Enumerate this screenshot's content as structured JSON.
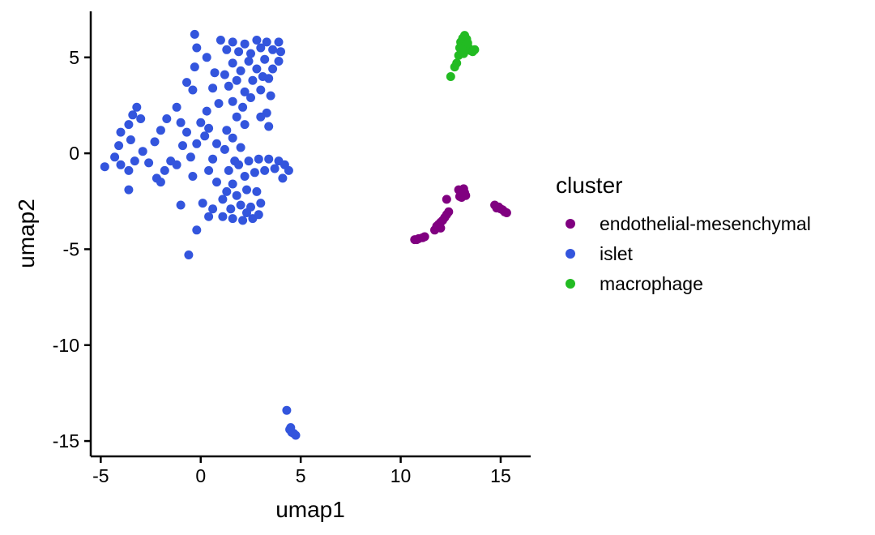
{
  "chart_data": {
    "type": "scatter",
    "title": "",
    "xlabel": "umap1",
    "ylabel": "umap2",
    "xlim": [
      -5.5,
      16.5
    ],
    "ylim": [
      -15.8,
      7.4
    ],
    "x_ticks": [
      -5,
      0,
      5,
      10,
      15
    ],
    "y_ticks": [
      5,
      0,
      -5,
      -10,
      -15
    ],
    "x_tick_labels": [
      "-5",
      "0",
      "5",
      "10",
      "15"
    ],
    "y_tick_labels": [
      "5",
      "0",
      "-5",
      "-10",
      "-15"
    ],
    "grid": false,
    "legend": {
      "title": "cluster",
      "placement": "right"
    },
    "series": [
      {
        "name": "endothelial-mesenchymal",
        "color": "#800080",
        "points": [
          [
            10.7,
            -4.5
          ],
          [
            10.9,
            -4.45
          ],
          [
            11.1,
            -4.4
          ],
          [
            11.2,
            -4.35
          ],
          [
            10.8,
            -4.5
          ],
          [
            11.7,
            -4.0
          ],
          [
            11.8,
            -3.8
          ],
          [
            11.9,
            -3.7
          ],
          [
            12.0,
            -3.6
          ],
          [
            12.1,
            -3.5
          ],
          [
            12.2,
            -3.35
          ],
          [
            12.3,
            -3.2
          ],
          [
            12.4,
            -3.05
          ],
          [
            12.3,
            -2.4
          ],
          [
            12.0,
            -3.9
          ],
          [
            12.9,
            -1.9
          ],
          [
            13.0,
            -2.0
          ],
          [
            13.1,
            -2.15
          ],
          [
            13.2,
            -2.05
          ],
          [
            13.05,
            -2.3
          ],
          [
            12.95,
            -2.25
          ],
          [
            13.15,
            -1.85
          ],
          [
            13.25,
            -2.2
          ],
          [
            14.7,
            -2.7
          ],
          [
            14.9,
            -2.8
          ],
          [
            15.0,
            -2.9
          ],
          [
            15.1,
            -2.95
          ],
          [
            15.2,
            -3.05
          ],
          [
            15.3,
            -3.1
          ],
          [
            14.8,
            -2.85
          ]
        ]
      },
      {
        "name": "islet",
        "color": "#3355dd",
        "points": [
          [
            -4.8,
            -0.7
          ],
          [
            -4.3,
            -0.2
          ],
          [
            -4.1,
            0.4
          ],
          [
            -4.0,
            1.1
          ],
          [
            -3.6,
            1.5
          ],
          [
            -3.4,
            2.0
          ],
          [
            -3.2,
            2.4
          ],
          [
            -3.0,
            1.8
          ],
          [
            -3.5,
            0.7
          ],
          [
            -3.3,
            -0.4
          ],
          [
            -3.6,
            -0.9
          ],
          [
            -4.0,
            -0.6
          ],
          [
            -3.6,
            -1.9
          ],
          [
            -2.9,
            0.1
          ],
          [
            -2.6,
            -0.5
          ],
          [
            -2.2,
            -1.3
          ],
          [
            -2.0,
            -1.5
          ],
          [
            -1.8,
            -0.9
          ],
          [
            -1.5,
            -0.4
          ],
          [
            -2.3,
            0.6
          ],
          [
            -2.0,
            1.2
          ],
          [
            -1.7,
            1.8
          ],
          [
            -1.2,
            2.4
          ],
          [
            -1.0,
            1.6
          ],
          [
            -0.7,
            1.1
          ],
          [
            -0.9,
            0.4
          ],
          [
            -0.5,
            -0.2
          ],
          [
            -0.2,
            0.5
          ],
          [
            -1.2,
            -0.6
          ],
          [
            -0.4,
            -1.2
          ],
          [
            0.2,
            0.9
          ],
          [
            0.0,
            1.6
          ],
          [
            0.3,
            2.2
          ],
          [
            -0.4,
            3.3
          ],
          [
            -0.7,
            3.7
          ],
          [
            -0.3,
            4.5
          ],
          [
            -0.2,
            5.5
          ],
          [
            -0.3,
            6.2
          ],
          [
            0.3,
            5.0
          ],
          [
            0.7,
            4.2
          ],
          [
            0.6,
            3.4
          ],
          [
            0.9,
            2.6
          ],
          [
            0.4,
            1.3
          ],
          [
            0.8,
            0.5
          ],
          [
            0.6,
            -0.3
          ],
          [
            0.4,
            -0.9
          ],
          [
            0.8,
            -1.5
          ],
          [
            1.1,
            -2.4
          ],
          [
            0.6,
            -2.9
          ],
          [
            0.4,
            -3.3
          ],
          [
            -0.2,
            -4.0
          ],
          [
            -0.6,
            -5.3
          ],
          [
            -1.0,
            -2.7
          ],
          [
            0.1,
            -2.6
          ],
          [
            1.0,
            5.9
          ],
          [
            1.3,
            5.4
          ],
          [
            1.6,
            5.8
          ],
          [
            1.9,
            5.3
          ],
          [
            2.2,
            5.7
          ],
          [
            2.5,
            5.2
          ],
          [
            2.8,
            5.9
          ],
          [
            3.0,
            5.5
          ],
          [
            3.3,
            5.8
          ],
          [
            3.6,
            5.4
          ],
          [
            3.9,
            5.8
          ],
          [
            4.0,
            5.3
          ],
          [
            3.9,
            4.8
          ],
          [
            3.6,
            4.4
          ],
          [
            3.2,
            4.9
          ],
          [
            2.8,
            4.4
          ],
          [
            2.4,
            4.8
          ],
          [
            2.0,
            4.3
          ],
          [
            1.6,
            4.7
          ],
          [
            1.2,
            4.1
          ],
          [
            1.4,
            3.5
          ],
          [
            1.8,
            3.8
          ],
          [
            2.2,
            3.2
          ],
          [
            2.6,
            3.8
          ],
          [
            3.0,
            3.3
          ],
          [
            3.4,
            3.9
          ],
          [
            1.6,
            2.7
          ],
          [
            2.1,
            2.4
          ],
          [
            2.5,
            2.9
          ],
          [
            1.8,
            1.9
          ],
          [
            2.2,
            1.5
          ],
          [
            1.3,
            1.2
          ],
          [
            1.6,
            0.8
          ],
          [
            2.0,
            0.3
          ],
          [
            1.2,
            0.2
          ],
          [
            1.7,
            -0.4
          ],
          [
            3.1,
            4.0
          ],
          [
            3.5,
            3.0
          ],
          [
            3.3,
            2.1
          ],
          [
            3.4,
            1.4
          ],
          [
            3.0,
            1.9
          ],
          [
            1.4,
            -0.9
          ],
          [
            1.9,
            -0.6
          ],
          [
            2.4,
            -0.4
          ],
          [
            2.9,
            -0.3
          ],
          [
            3.4,
            -0.3
          ],
          [
            3.9,
            -0.4
          ],
          [
            4.2,
            -0.6
          ],
          [
            4.4,
            -0.9
          ],
          [
            4.1,
            -1.3
          ],
          [
            3.7,
            -0.8
          ],
          [
            3.2,
            -0.9
          ],
          [
            2.7,
            -1.0
          ],
          [
            2.2,
            -1.2
          ],
          [
            1.6,
            -1.6
          ],
          [
            1.3,
            -2.0
          ],
          [
            1.8,
            -2.2
          ],
          [
            2.3,
            -1.9
          ],
          [
            2.8,
            -2.0
          ],
          [
            3.0,
            -2.6
          ],
          [
            2.5,
            -2.8
          ],
          [
            2.0,
            -2.7
          ],
          [
            1.5,
            -2.9
          ],
          [
            1.1,
            -3.3
          ],
          [
            1.6,
            -3.4
          ],
          [
            2.1,
            -3.5
          ],
          [
            2.6,
            -3.4
          ],
          [
            2.9,
            -3.2
          ],
          [
            2.3,
            -3.1
          ],
          [
            4.3,
            -13.4
          ],
          [
            4.45,
            -14.4
          ],
          [
            4.55,
            -14.55
          ],
          [
            4.65,
            -14.6
          ],
          [
            4.75,
            -14.7
          ],
          [
            4.5,
            -14.3
          ]
        ]
      },
      {
        "name": "macrophage",
        "color": "#22bb22",
        "points": [
          [
            12.5,
            4.0
          ],
          [
            12.7,
            4.5
          ],
          [
            12.8,
            4.7
          ],
          [
            12.9,
            5.1
          ],
          [
            12.95,
            5.5
          ],
          [
            13.0,
            5.8
          ],
          [
            13.1,
            6.0
          ],
          [
            13.2,
            6.15
          ],
          [
            13.3,
            5.95
          ],
          [
            13.4,
            5.5
          ],
          [
            13.5,
            5.35
          ],
          [
            13.6,
            5.3
          ],
          [
            13.7,
            5.4
          ],
          [
            13.25,
            5.6
          ],
          [
            13.15,
            5.2
          ],
          [
            13.35,
            5.75
          ],
          [
            13.05,
            5.45
          ]
        ]
      }
    ]
  }
}
